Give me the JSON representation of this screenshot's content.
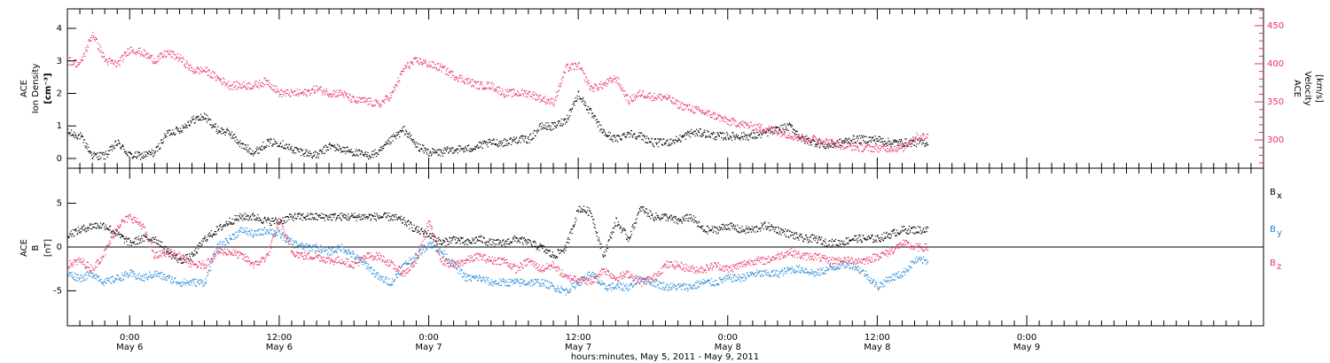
{
  "chart_data": {
    "type": "scatter",
    "x_start_hours": 0,
    "x_range_hours": [
      0,
      96
    ],
    "xlabel": "hours:minutes, May  5, 2011 - May  9, 2011",
    "x_ticks": [
      {
        "h": 5,
        "time": "0:00",
        "day": "May 6"
      },
      {
        "h": 17,
        "time": "12:00",
        "day": "May 6"
      },
      {
        "h": 29,
        "time": "0:00",
        "day": "May 7"
      },
      {
        "h": 41,
        "time": "12:00",
        "day": "May 7"
      },
      {
        "h": 53,
        "time": "0:00",
        "day": "May 8"
      },
      {
        "h": 65,
        "time": "12:00",
        "day": "May 8"
      },
      {
        "h": 77,
        "time": "0:00",
        "day": "May 9"
      }
    ],
    "panels": [
      {
        "name": "plasma",
        "left_axis": {
          "label_lines": [
            "ACE",
            "Ion Density",
            "[cm⁻³]"
          ],
          "range": [
            -0.3,
            4.6
          ],
          "ticks": [
            "0",
            "1",
            "2",
            "3",
            "4"
          ]
        },
        "right_axis": {
          "label_lines": [
            "ACE",
            "Velocity",
            "[km/s]"
          ],
          "range": [
            263,
            472
          ],
          "ticks": [
            "300",
            "350",
            "400",
            "450"
          ],
          "color": "#e8305f"
        },
        "series": [
          {
            "axis": "left",
            "color": "#000000",
            "x": [
              0,
              1,
              2,
              3,
              4,
              5,
              6,
              7,
              8,
              9,
              10,
              11,
              12,
              13,
              14,
              15,
              16,
              17,
              18,
              19,
              20,
              21,
              22,
              23,
              24,
              25,
              26,
              27,
              28,
              29,
              30,
              31,
              32,
              33,
              34,
              35,
              36,
              37,
              38,
              39,
              40,
              41,
              42,
              43,
              44,
              45,
              46,
              47,
              48,
              49,
              50,
              51,
              52,
              53,
              54,
              55,
              56,
              57,
              58,
              59,
              60,
              61,
              62,
              63,
              64,
              65,
              66,
              67,
              68
            ],
            "y": [
              0.8,
              0.7,
              0.1,
              0.1,
              0.5,
              0.1,
              0.1,
              0.2,
              0.8,
              0.9,
              1.2,
              1.3,
              0.9,
              0.8,
              0.4,
              0.2,
              0.5,
              0.5,
              0.3,
              0.2,
              0.1,
              0.4,
              0.3,
              0.2,
              0.1,
              0.2,
              0.6,
              0.9,
              0.4,
              0.2,
              0.2,
              0.3,
              0.3,
              0.4,
              0.5,
              0.5,
              0.6,
              0.6,
              1.0,
              1.0,
              1.2,
              2.0,
              1.4,
              0.8,
              0.6,
              0.8,
              0.7,
              0.5,
              0.5,
              0.6,
              0.8,
              0.8,
              0.7,
              0.7,
              0.7,
              0.7,
              0.8,
              0.9,
              1.0,
              0.6,
              0.5,
              0.4,
              0.5,
              0.6,
              0.6,
              0.6,
              0.5,
              0.5,
              0.5
            ]
          },
          {
            "axis": "right",
            "color": "#e8305f",
            "x": [
              0,
              1,
              2,
              3,
              4,
              5,
              6,
              7,
              8,
              9,
              10,
              11,
              12,
              13,
              14,
              15,
              16,
              17,
              18,
              19,
              20,
              21,
              22,
              23,
              24,
              25,
              26,
              27,
              28,
              29,
              30,
              31,
              32,
              33,
              34,
              35,
              36,
              37,
              38,
              39,
              40,
              41,
              42,
              43,
              44,
              45,
              46,
              47,
              48,
              49,
              50,
              51,
              52,
              53,
              54,
              55,
              56,
              57,
              58,
              59,
              60,
              61,
              62,
              63,
              64,
              65,
              66,
              67,
              68
            ],
            "y": [
              405,
              400,
              440,
              405,
              400,
              420,
              415,
              405,
              415,
              408,
              392,
              392,
              382,
              372,
              372,
              372,
              378,
              362,
              362,
              362,
              368,
              362,
              362,
              352,
              352,
              347,
              360,
              395,
              405,
              400,
              395,
              385,
              378,
              372,
              372,
              362,
              362,
              362,
              355,
              350,
              395,
              398,
              368,
              373,
              382,
              352,
              362,
              357,
              357,
              347,
              342,
              337,
              332,
              325,
              322,
              318,
              316,
              312,
              307,
              302,
              302,
              298,
              294,
              292,
              290,
              290,
              290,
              290,
              305
            ]
          }
        ]
      },
      {
        "name": "magnetic",
        "left_axis": {
          "label_lines": [
            "ACE",
            "B",
            "[nT]"
          ],
          "range": [
            -9,
            9
          ],
          "ticks": [
            "-5",
            "0",
            "5"
          ]
        },
        "legend": [
          {
            "label": "B",
            "sub": "x",
            "color": "#000000"
          },
          {
            "label": "B",
            "sub": "y",
            "color": "#1f86d8"
          },
          {
            "label": "B",
            "sub": "z",
            "color": "#e8305f"
          }
        ],
        "series": [
          {
            "name": "Bx",
            "color": "#000000",
            "x": [
              0,
              1,
              2,
              3,
              4,
              5,
              6,
              7,
              8,
              9,
              10,
              11,
              12,
              13,
              14,
              15,
              16,
              17,
              18,
              19,
              20,
              21,
              22,
              23,
              24,
              25,
              26,
              27,
              28,
              29,
              30,
              31,
              32,
              33,
              34,
              35,
              36,
              37,
              38,
              39,
              40,
              41,
              42,
              43,
              44,
              45,
              46,
              47,
              48,
              49,
              50,
              51,
              52,
              53,
              54,
              55,
              56,
              57,
              58,
              59,
              60,
              61,
              62,
              63,
              64,
              65,
              66,
              67,
              68
            ],
            "y": [
              1.5,
              2.0,
              2.5,
              2.5,
              1.5,
              0.5,
              1.0,
              1.0,
              -0.5,
              -1.5,
              -1.0,
              1.0,
              2.0,
              3.0,
              3.5,
              3.5,
              3.0,
              3.0,
              3.5,
              3.5,
              3.5,
              3.5,
              3.5,
              3.5,
              3.5,
              3.5,
              3.5,
              3.0,
              2.0,
              1.5,
              0.5,
              1.0,
              0.5,
              1.0,
              0.5,
              0.5,
              1.0,
              0.5,
              0.0,
              -1.0,
              0.0,
              4.5,
              4.0,
              -1.0,
              3.0,
              1.0,
              4.5,
              3.5,
              3.5,
              3.0,
              3.5,
              2.0,
              2.0,
              2.5,
              2.0,
              2.0,
              2.5,
              2.0,
              1.5,
              1.0,
              1.0,
              0.5,
              0.5,
              1.0,
              1.0,
              1.0,
              1.5,
              2.0,
              2.0
            ]
          },
          {
            "name": "By",
            "color": "#1f86d8",
            "x": [
              0,
              1,
              2,
              3,
              4,
              5,
              6,
              7,
              8,
              9,
              10,
              11,
              12,
              13,
              14,
              15,
              16,
              17,
              18,
              19,
              20,
              21,
              22,
              23,
              24,
              25,
              26,
              27,
              28,
              29,
              30,
              31,
              32,
              33,
              34,
              35,
              36,
              37,
              38,
              39,
              40,
              41,
              42,
              43,
              44,
              45,
              46,
              47,
              48,
              49,
              50,
              51,
              52,
              53,
              54,
              55,
              56,
              57,
              58,
              59,
              60,
              61,
              62,
              63,
              64,
              65,
              66,
              67,
              68
            ],
            "y": [
              -3.0,
              -3.5,
              -3.0,
              -4.0,
              -3.5,
              -3.0,
              -3.5,
              -3.0,
              -3.5,
              -4.0,
              -4.0,
              -4.0,
              0.0,
              1.0,
              2.0,
              1.5,
              2.0,
              1.5,
              0.5,
              0.0,
              0.0,
              -0.5,
              0.0,
              -1.0,
              -2.0,
              -3.5,
              -4.0,
              -2.0,
              -1.0,
              0.5,
              -0.5,
              -2.0,
              -3.5,
              -3.5,
              -4.0,
              -4.0,
              -4.0,
              -4.0,
              -4.0,
              -4.5,
              -5.0,
              -4.0,
              -3.0,
              -4.5,
              -4.5,
              -4.5,
              -3.5,
              -4.0,
              -4.5,
              -4.5,
              -4.5,
              -4.0,
              -4.0,
              -3.5,
              -3.5,
              -3.0,
              -3.0,
              -3.0,
              -2.5,
              -2.5,
              -3.0,
              -2.5,
              -2.0,
              -2.0,
              -3.0,
              -4.5,
              -3.5,
              -3.0,
              -1.5
            ]
          },
          {
            "name": "Bz",
            "color": "#e8305f",
            "x": [
              0,
              1,
              2,
              3,
              4,
              5,
              6,
              7,
              8,
              9,
              10,
              11,
              12,
              13,
              14,
              15,
              16,
              17,
              18,
              19,
              20,
              21,
              22,
              23,
              24,
              25,
              26,
              27,
              28,
              29,
              30,
              31,
              32,
              33,
              34,
              35,
              36,
              37,
              38,
              39,
              40,
              41,
              42,
              43,
              44,
              45,
              46,
              47,
              48,
              49,
              50,
              51,
              52,
              53,
              54,
              55,
              56,
              57,
              58,
              59,
              60,
              61,
              62,
              63,
              64,
              65,
              66,
              67,
              68
            ],
            "y": [
              -2.0,
              -1.5,
              -2.5,
              -0.5,
              2.5,
              3.5,
              2.5,
              -1.0,
              -0.5,
              -1.0,
              -2.0,
              -2.0,
              -0.5,
              -0.5,
              -1.0,
              -2.0,
              -1.0,
              3.0,
              -0.5,
              -1.0,
              -1.0,
              -1.5,
              -1.5,
              -2.0,
              -1.0,
              -1.0,
              -2.0,
              -3.0,
              -1.5,
              3.0,
              -1.5,
              -2.0,
              -1.5,
              -1.0,
              -1.5,
              -1.5,
              -2.5,
              -1.5,
              -2.5,
              -2.0,
              -3.5,
              -3.5,
              -4.0,
              -2.5,
              -3.5,
              -3.0,
              -4.0,
              -3.5,
              -2.0,
              -2.0,
              -2.5,
              -2.5,
              -2.0,
              -2.5,
              -2.0,
              -1.5,
              -1.5,
              -1.0,
              -0.5,
              -1.0,
              -1.0,
              -1.5,
              -1.5,
              -1.5,
              -1.5,
              -1.0,
              -0.5,
              0.5,
              0.0
            ]
          }
        ]
      }
    ]
  }
}
